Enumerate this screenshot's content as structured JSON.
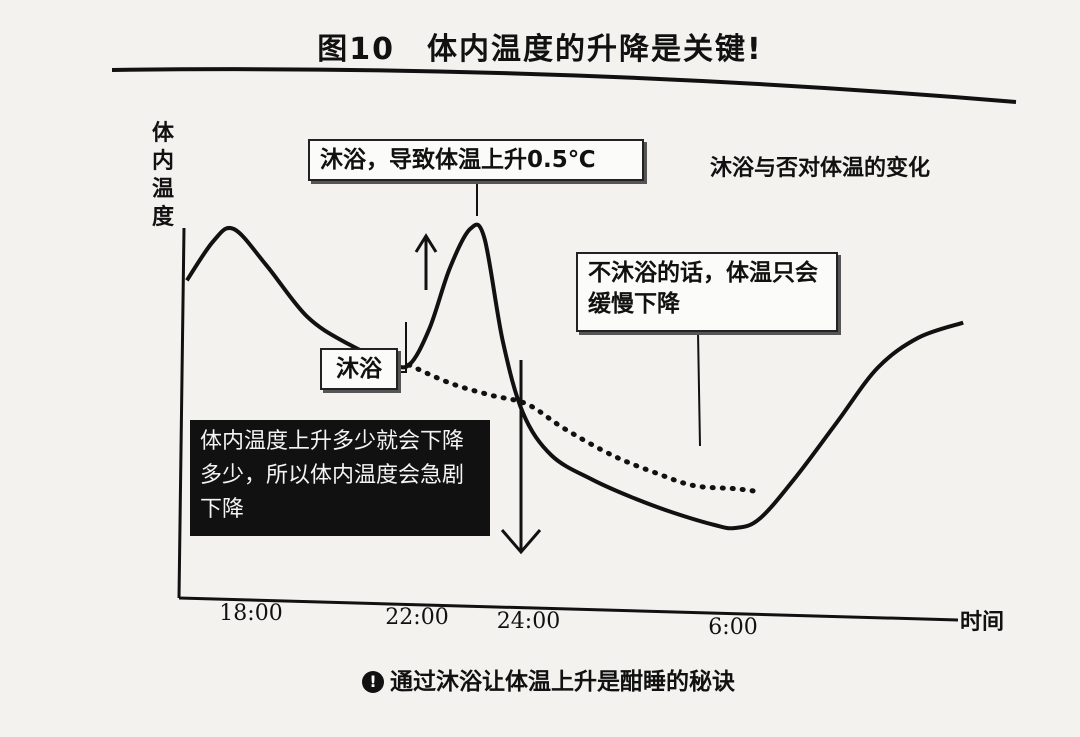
{
  "figure": {
    "title": "图10　体内温度的升降是关键!",
    "footer_text": "通过沐浴让体温上升是酣睡的秘诀",
    "footer_icon": "exclamation-circle-icon",
    "footer_icon_glyph": "!"
  },
  "chart_data": {
    "type": "line",
    "ylabel": "体内温度",
    "xlabel": "时间",
    "subtitle": "沐浴与否对体温的变化",
    "x_ticks": [
      "18:00",
      "22:00",
      "24:00",
      "6:00"
    ],
    "grid": false,
    "series": [
      {
        "style": "solid"
      },
      {
        "style": "dotted"
      }
    ],
    "annotations": {
      "rise": "沐浴，导致体温上升0.5℃",
      "no_bath": "不沐浴的话，体温只会缓慢下降",
      "bath": "沐浴",
      "drop_explanation": "体内温度上升多少就会下降多少，所以体内温度会急剧下降"
    },
    "colors": {
      "line": "#111111",
      "box_fill": "#111111",
      "box_text": "#f4f4f4"
    }
  }
}
